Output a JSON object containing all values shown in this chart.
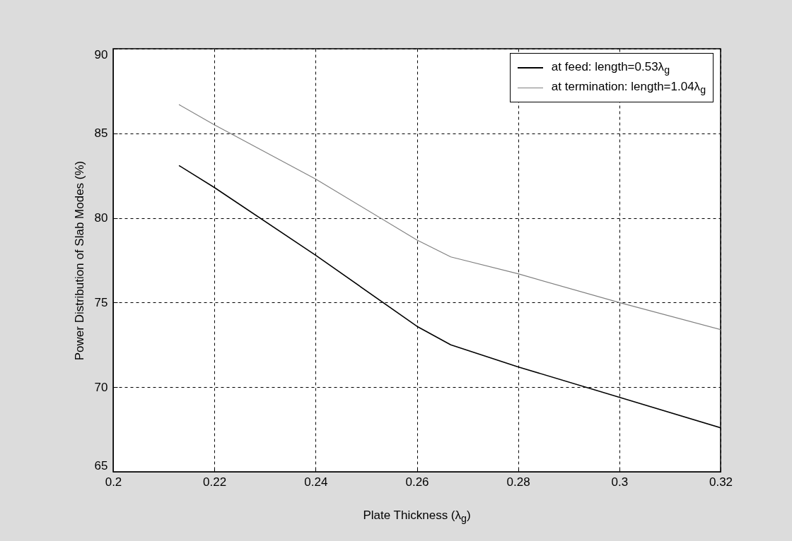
{
  "chart_data": {
    "type": "line",
    "xlabel": "Plate Thickness (λ$_{g}$)",
    "ylabel": "Power Distribution of Slab Modes (%)",
    "x": [
      0.213,
      0.22,
      0.24,
      0.26,
      0.2667,
      0.28,
      0.3,
      0.32
    ],
    "series": [
      {
        "name": "at feed: length=0.53λ$_{g}$",
        "color": "#000000",
        "values": [
          83.1,
          81.8,
          77.8,
          73.6,
          72.5,
          71.2,
          69.4,
          67.6
        ]
      },
      {
        "name": "at termination: length=1.04λ$_{g}$",
        "color": "#808080",
        "values": [
          86.7,
          85.5,
          82.3,
          78.7,
          77.7,
          76.7,
          75.0,
          73.4
        ]
      }
    ],
    "xlim": [
      0.2,
      0.32
    ],
    "xticks": [
      0.2,
      0.22,
      0.24,
      0.26,
      0.28,
      0.3,
      0.32
    ],
    "ylim": [
      65,
      90
    ],
    "yticks": [
      65,
      70,
      75,
      80,
      85,
      90
    ],
    "grid": true,
    "legend": "top right",
    "line_style": "solid",
    "marker": "none"
  }
}
